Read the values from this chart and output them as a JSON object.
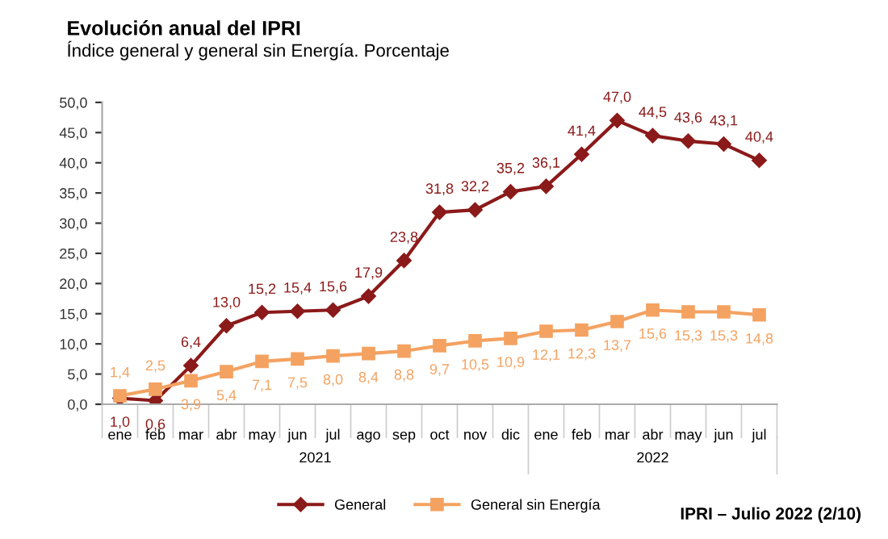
{
  "chart_data": {
    "type": "line",
    "title": "Evolución anual del IPRI",
    "subtitle": "Índice general y general sin Energía. Porcentaje",
    "categories": [
      "ene",
      "feb",
      "mar",
      "abr",
      "may",
      "jun",
      "jul",
      "ago",
      "sep",
      "oct",
      "nov",
      "dic",
      "ene",
      "feb",
      "mar",
      "abr",
      "may",
      "jun",
      "jul"
    ],
    "series": [
      {
        "name": "General",
        "color": "#8b1a1a",
        "marker": "diamond",
        "values": [
          1.0,
          0.6,
          6.4,
          13.0,
          15.2,
          15.4,
          15.6,
          17.9,
          23.8,
          31.8,
          32.2,
          35.2,
          36.1,
          41.4,
          47.0,
          44.5,
          43.6,
          43.1,
          40.4
        ],
        "value_labels": [
          "1,0",
          "0,6",
          "6,4",
          "13,0",
          "15,2",
          "15,4",
          "15,6",
          "17,9",
          "23,8",
          "31,8",
          "32,2",
          "35,2",
          "36,1",
          "41,4",
          "47,0",
          "44,5",
          "43,6",
          "43,1",
          "40,4"
        ]
      },
      {
        "name": "General sin Energía",
        "color": "#f4a261",
        "marker": "square",
        "values": [
          1.4,
          2.5,
          3.9,
          5.4,
          7.1,
          7.5,
          8.0,
          8.4,
          8.8,
          9.7,
          10.5,
          10.9,
          12.1,
          12.3,
          13.7,
          15.6,
          15.3,
          15.3,
          14.8
        ],
        "value_labels": [
          "1,4",
          "2,5",
          "3,9",
          "5,4",
          "7,1",
          "7,5",
          "8,0",
          "8,4",
          "8,8",
          "9,7",
          "10,5",
          "10,9",
          "12,1",
          "12,3",
          "13,7",
          "15,6",
          "15,3",
          "15,3",
          "14,8"
        ]
      }
    ],
    "ylim": [
      0,
      50
    ],
    "yticks": [
      {
        "value": 0,
        "label": "0,0"
      },
      {
        "value": 5,
        "label": "5,0"
      },
      {
        "value": 10,
        "label": "10,0"
      },
      {
        "value": 15,
        "label": "15,0"
      },
      {
        "value": 20,
        "label": "20,0"
      },
      {
        "value": 25,
        "label": "25,0"
      },
      {
        "value": 30,
        "label": "30,0"
      },
      {
        "value": 35,
        "label": "35,0"
      },
      {
        "value": 40,
        "label": "40,0"
      },
      {
        "value": 45,
        "label": "45,0"
      },
      {
        "value": 50,
        "label": "50,0"
      }
    ],
    "grid": false,
    "legend": "bottom",
    "line_style": "solid",
    "annotations": [
      "2021",
      "2022",
      "IPRI – Julio 2022 (2/10)"
    ]
  }
}
